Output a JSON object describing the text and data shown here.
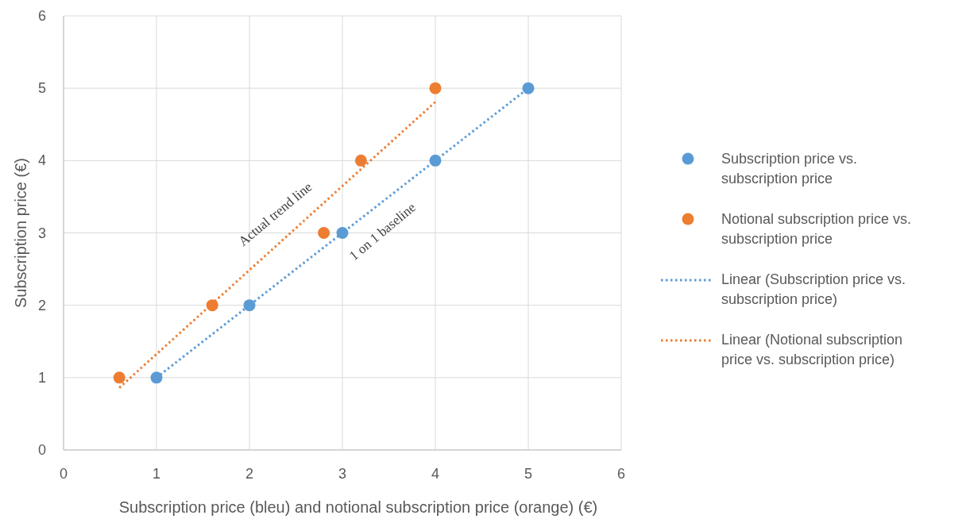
{
  "chart_data": {
    "type": "scatter",
    "xlabel": "Subscription price (bleu) and notional subscription price (orange) (€)",
    "ylabel": "Subscription price (€)",
    "xlim": [
      0,
      6
    ],
    "ylim": [
      0,
      6
    ],
    "xticks": [
      0,
      1,
      2,
      3,
      4,
      5,
      6
    ],
    "yticks": [
      0,
      1,
      2,
      3,
      4,
      5,
      6
    ],
    "grid": true,
    "legend": "right",
    "marker": "circle",
    "series": [
      {
        "name": "Subscription price vs. subscription price",
        "color": "#5b9bd5",
        "x": [
          1,
          2,
          3,
          4,
          5
        ],
        "values": [
          1,
          2,
          3,
          4,
          5
        ]
      },
      {
        "name": "Notional subscription price vs. subscription price",
        "color": "#ed7d31",
        "x": [
          0.6,
          1.6,
          2.8,
          3.2,
          4
        ],
        "values": [
          1,
          2,
          3,
          4,
          5
        ]
      },
      {
        "name": "Linear (Subscription price vs. subscription price)",
        "type": "line",
        "color": "#5b9bd5",
        "line_style": "dotted",
        "marker": "none",
        "x": [
          1,
          5
        ],
        "values": [
          1,
          5
        ]
      },
      {
        "name": "Linear (Notional subscription price vs. subscription price)",
        "type": "line",
        "color": "#ed7d31",
        "line_style": "dotted",
        "marker": "none",
        "x": [
          0.6,
          4
        ],
        "values": [
          0.86,
          4.81
        ]
      }
    ],
    "annotations": [
      "Actual trend line",
      "1 on 1 baseline"
    ]
  }
}
